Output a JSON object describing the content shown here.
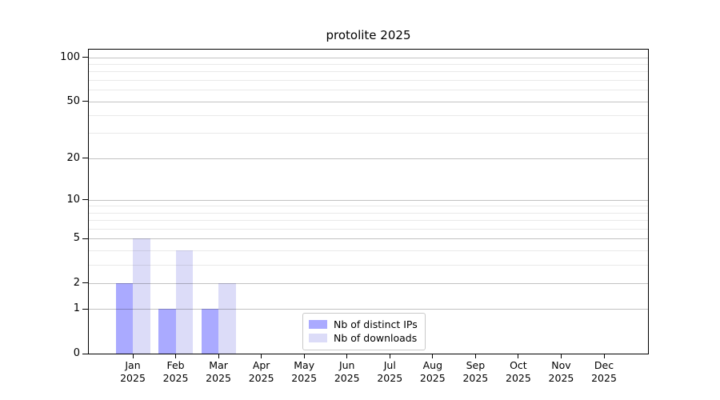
{
  "chart_data": {
    "type": "bar",
    "title": "protolite 2025",
    "categories": [
      "Jan",
      "Feb",
      "Mar",
      "Apr",
      "May",
      "Jun",
      "Jul",
      "Aug",
      "Sep",
      "Oct",
      "Nov",
      "Dec"
    ],
    "x_tick_year": "2025",
    "series": [
      {
        "name": "Nb of distinct IPs",
        "color": "#aaaaff",
        "values": [
          2,
          1,
          1,
          0,
          0,
          0,
          0,
          0,
          0,
          0,
          0,
          0
        ]
      },
      {
        "name": "Nb of downloads",
        "color": "#dcdcf8",
        "values": [
          5,
          4,
          2,
          0,
          0,
          0,
          0,
          0,
          0,
          0,
          0,
          0
        ]
      }
    ],
    "yscale": "log1p",
    "ylim": [
      0,
      113
    ],
    "y_major_ticks": [
      0,
      1,
      2,
      5,
      10,
      20,
      50,
      100
    ],
    "y_minor_ticks": [
      3,
      4,
      6,
      7,
      8,
      9,
      30,
      40,
      60,
      70,
      80,
      90
    ],
    "grid": true,
    "legend_position": "lower-center-inside"
  },
  "colors": {
    "axis": "#000000",
    "text": "#000000",
    "grid_major": "rgba(0,0,0,0.24)",
    "grid_minor": "rgba(0,0,0,0.085)",
    "legend_border": "#c9c9c9",
    "background": "#ffffff"
  }
}
